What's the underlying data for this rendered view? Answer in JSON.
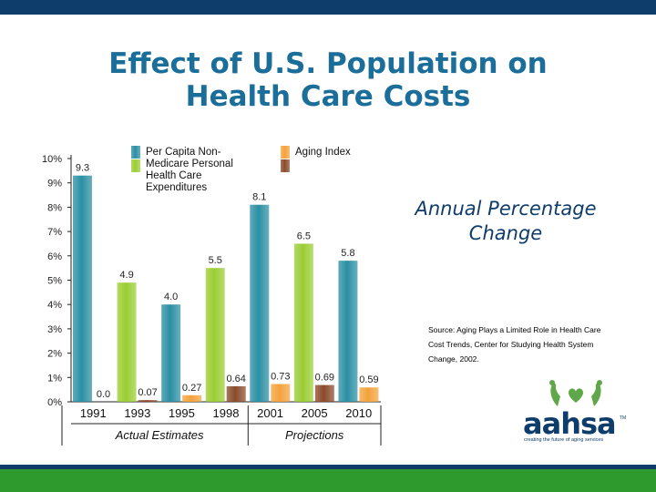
{
  "slide": {
    "title_line1": "Effect of U.S. Population on",
    "title_line2": "Health Care Costs",
    "subtitle_line1": "Annual Percentage",
    "subtitle_line2": "Change",
    "source_lines": [
      "Source: Aging Plays a Limited Role in Health Care",
      "Cost Trends, Center for Studying Health System",
      "Change, 2002."
    ]
  },
  "logo": {
    "text": "aahsa",
    "tm": "TM",
    "tagline": "creating the future of aging services"
  },
  "colors": {
    "top_bar": "#0f3d6b",
    "bottom_green": "#2e9a2e",
    "title": "#1b6e9a",
    "teal": "#2a8fa3",
    "lime": "#9acd32",
    "orange": "#f4a23a",
    "brown": "#8a4a2a"
  },
  "chart_data": {
    "type": "bar",
    "categories": [
      "1991",
      "1993",
      "1995",
      "1998",
      "2001",
      "2005",
      "2010"
    ],
    "groups": [
      "Actual Estimates",
      "Projections"
    ],
    "group_of_category": [
      0,
      0,
      0,
      0,
      1,
      1,
      1
    ],
    "ylim": [
      0,
      10
    ],
    "y_ticks": [
      "0%",
      "1%",
      "2%",
      "3%",
      "4%",
      "5%",
      "6%",
      "7%",
      "8%",
      "9%",
      "10%"
    ],
    "series": [
      {
        "name": "Per Capita Non-Medicare Personal Health Care Expenditures",
        "legend_lines": [
          "Per Capita Non-",
          "Medicare Personal",
          "Health Care",
          "Expenditures"
        ],
        "values": [
          9.3,
          4.9,
          4.0,
          5.5,
          8.1,
          6.5,
          5.8
        ],
        "labels": [
          "9.3",
          "4.9",
          "4.0",
          "5.5",
          "8.1",
          "6.5",
          "5.8"
        ],
        "colors": [
          "teal",
          "lime",
          "teal",
          "lime",
          "teal",
          "lime",
          "teal"
        ]
      },
      {
        "name": "Aging Index",
        "legend_lines": [
          "Aging Index"
        ],
        "values": [
          0.0,
          0.07,
          0.27,
          0.64,
          0.73,
          0.69,
          0.59
        ],
        "labels": [
          "0.0",
          "0.07",
          "0.27",
          "0.64",
          "0.73",
          "0.69",
          "0.59"
        ],
        "colors": [
          "orange",
          "brown",
          "orange",
          "brown",
          "orange",
          "brown",
          "orange"
        ]
      }
    ]
  }
}
